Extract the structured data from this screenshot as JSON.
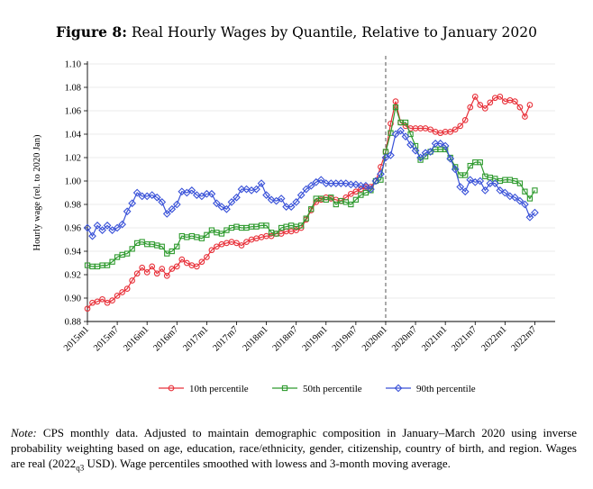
{
  "figure": {
    "label": "Figure 8:",
    "title": "Real Hourly Wages by Quantile, Relative to January 2020"
  },
  "note": {
    "label": "Note:",
    "text_before": " CPS monthly data.  Adjusted to maintain demographic composition in January–March 2020 using inverse probability weighting based on age, education, race/ethnicity, gender, citizenship, country of birth, and region.  Wages are real (2022",
    "subscript": "q3",
    "text_after": " USD). Wage percentiles smoothed with lowess and 3-month moving average."
  },
  "chart_data": {
    "type": "line",
    "ylabel": "Hourly wage (rel. to 2020 Jan)",
    "xlabel": "",
    "ylim": [
      0.88,
      1.1
    ],
    "yticks": [
      "0.88",
      "0.90",
      "0.92",
      "0.94",
      "0.96",
      "0.98",
      "1.00",
      "1.02",
      "1.04",
      "1.06",
      "1.08",
      "1.10"
    ],
    "xticks": [
      "2015m1",
      "2015m7",
      "2016m1",
      "2016m7",
      "2017m1",
      "2017m7",
      "2018m1",
      "2018m7",
      "2019m1",
      "2019m7",
      "2020m1",
      "2020m7",
      "2021m1",
      "2021m7",
      "2022m1",
      "2022m7"
    ],
    "x_start": "2015m1",
    "x_end": "2022m10",
    "reference_line": "2020m1",
    "grid": "horizontal",
    "legend_position": "bottom",
    "series": [
      {
        "name": "10th percentile",
        "color": "#e8313a",
        "marker": "circle",
        "values": [
          0.891,
          0.896,
          0.897,
          0.899,
          0.896,
          0.898,
          0.902,
          0.905,
          0.908,
          0.915,
          0.921,
          0.926,
          0.922,
          0.927,
          0.921,
          0.925,
          0.919,
          0.925,
          0.927,
          0.933,
          0.93,
          0.928,
          0.927,
          0.931,
          0.935,
          0.941,
          0.944,
          0.946,
          0.947,
          0.948,
          0.947,
          0.945,
          0.948,
          0.95,
          0.951,
          0.952,
          0.953,
          0.953,
          0.955,
          0.955,
          0.957,
          0.957,
          0.958,
          0.96,
          0.967,
          0.975,
          0.982,
          0.984,
          0.986,
          0.985,
          0.984,
          0.983,
          0.986,
          0.989,
          0.991,
          0.993,
          0.995,
          0.995,
          1.0,
          1.012,
          1.025,
          1.049,
          1.068,
          1.05,
          1.047,
          1.045,
          1.045,
          1.045,
          1.045,
          1.044,
          1.042,
          1.041,
          1.042,
          1.042,
          1.044,
          1.047,
          1.052,
          1.063,
          1.072,
          1.065,
          1.062,
          1.067,
          1.071,
          1.072,
          1.068,
          1.069,
          1.068,
          1.063,
          1.055,
          1.065
        ]
      },
      {
        "name": "50th percentile",
        "color": "#2e9a2e",
        "marker": "square",
        "values": [
          0.928,
          0.927,
          0.927,
          0.928,
          0.928,
          0.931,
          0.935,
          0.937,
          0.938,
          0.942,
          0.947,
          0.948,
          0.946,
          0.946,
          0.945,
          0.944,
          0.938,
          0.94,
          0.944,
          0.953,
          0.952,
          0.953,
          0.952,
          0.951,
          0.954,
          0.958,
          0.956,
          0.955,
          0.958,
          0.96,
          0.961,
          0.96,
          0.96,
          0.961,
          0.961,
          0.962,
          0.962,
          0.956,
          0.955,
          0.96,
          0.961,
          0.962,
          0.961,
          0.962,
          0.968,
          0.976,
          0.985,
          0.985,
          0.984,
          0.986,
          0.98,
          0.983,
          0.982,
          0.98,
          0.984,
          0.988,
          0.99,
          0.992,
          1.0,
          1.001,
          1.025,
          1.041,
          1.063,
          1.05,
          1.05,
          1.04,
          1.03,
          1.018,
          1.021,
          1.025,
          1.027,
          1.027,
          1.027,
          1.02,
          1.012,
          1.005,
          1.005,
          1.013,
          1.016,
          1.016,
          1.004,
          1.003,
          1.002,
          1.0,
          1.001,
          1.001,
          1.0,
          0.998,
          0.991,
          0.985,
          0.992
        ]
      },
      {
        "name": "90th percentile",
        "color": "#3a52d8",
        "marker": "diamond",
        "values": [
          0.96,
          0.953,
          0.962,
          0.958,
          0.962,
          0.958,
          0.96,
          0.963,
          0.974,
          0.981,
          0.99,
          0.987,
          0.987,
          0.988,
          0.986,
          0.982,
          0.972,
          0.976,
          0.98,
          0.991,
          0.99,
          0.992,
          0.988,
          0.987,
          0.989,
          0.989,
          0.981,
          0.978,
          0.976,
          0.982,
          0.986,
          0.993,
          0.993,
          0.992,
          0.993,
          0.998,
          0.988,
          0.984,
          0.983,
          0.985,
          0.978,
          0.978,
          0.982,
          0.988,
          0.993,
          0.996,
          0.999,
          1.001,
          0.998,
          0.998,
          0.998,
          0.998,
          0.998,
          0.997,
          0.997,
          0.996,
          0.996,
          0.993,
          1.0,
          1.006,
          1.02,
          1.022,
          1.04,
          1.043,
          1.038,
          1.031,
          1.026,
          1.02,
          1.024,
          1.025,
          1.032,
          1.032,
          1.03,
          1.019,
          1.01,
          0.995,
          0.991,
          1.001,
          0.999,
          1.0,
          0.992,
          0.998,
          0.998,
          0.992,
          0.99,
          0.987,
          0.986,
          0.983,
          0.98,
          0.969,
          0.973
        ]
      }
    ]
  }
}
